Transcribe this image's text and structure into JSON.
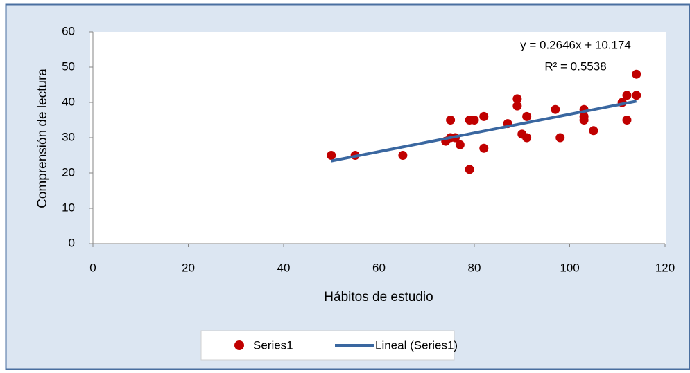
{
  "chart_data": {
    "type": "scatter",
    "x_label": "Hábitos de estudio",
    "y_label": "Comprensión de lectura",
    "xlim": [
      0,
      120
    ],
    "xticks": [
      0,
      20,
      40,
      60,
      80,
      100,
      120
    ],
    "ylim": [
      0,
      60
    ],
    "yticks": [
      0,
      10,
      20,
      30,
      40,
      50,
      60
    ],
    "series": [
      {
        "name": "Series1",
        "color": "#c00000",
        "x": [
          50,
          55,
          65,
          74,
          75,
          75,
          76,
          77,
          79,
          79,
          80,
          82,
          82,
          87,
          89,
          89,
          90,
          91,
          91,
          97,
          98,
          103,
          103,
          103,
          105,
          111,
          112,
          112,
          114,
          114
        ],
        "values": [
          25,
          25,
          25,
          29,
          30,
          35,
          30,
          28,
          21,
          35,
          35,
          36,
          27,
          34,
          41,
          39,
          31,
          36,
          30,
          38,
          30,
          38,
          36,
          35,
          32,
          40,
          42,
          35,
          42,
          48
        ]
      }
    ],
    "trendline": {
      "name": "Lineal (Series1)",
      "color": "#3a67a0",
      "slope": 0.2646,
      "intercept": 10.174,
      "equation": "y = 0.2646x + 10.174",
      "r2_label": "R² = 0.5538"
    }
  }
}
